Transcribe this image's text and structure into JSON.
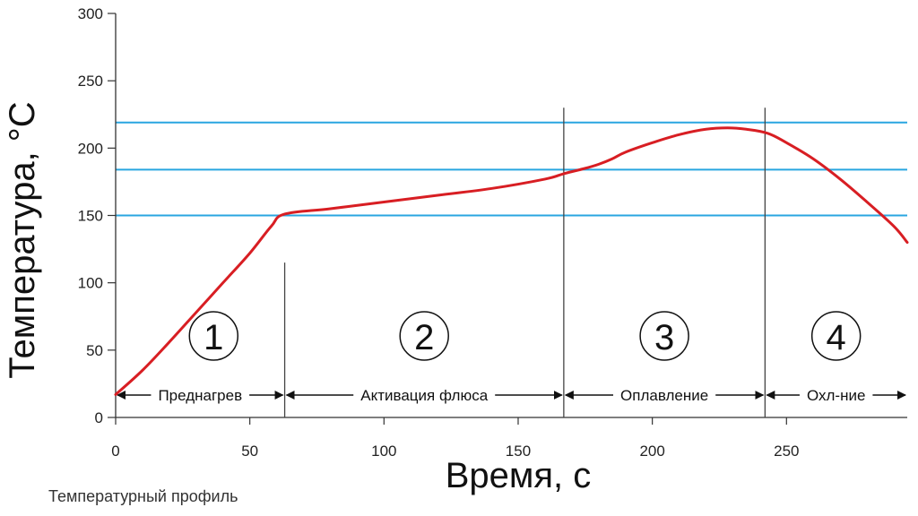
{
  "caption": "Температурный профиль",
  "colors": {
    "curve": "#d81e23",
    "reference_lines": "#29a6e0",
    "axis": "#333333",
    "phase_lines": "#444444"
  },
  "chart_data": {
    "type": "line",
    "title": "",
    "xlabel": "Время, с",
    "ylabel": "Температура, °С",
    "xlim": [
      0,
      295
    ],
    "ylim": [
      0,
      300
    ],
    "x_ticks": [
      0,
      50,
      100,
      150,
      200,
      250
    ],
    "y_ticks": [
      0,
      50,
      100,
      150,
      200,
      250,
      300
    ],
    "grid": false,
    "series": [
      {
        "x": [
          0,
          10,
          20,
          30,
          40,
          50,
          58,
          63,
          80,
          100,
          120,
          140,
          160,
          167,
          175,
          180,
          185,
          190,
          200,
          210,
          220,
          228,
          235,
          243,
          250,
          260,
          270,
          280,
          290,
          295
        ],
        "y": [
          17,
          35,
          56,
          78,
          100,
          122,
          142,
          151,
          155,
          160,
          165,
          170,
          177,
          181,
          185,
          188,
          192,
          197,
          204,
          210,
          214,
          215,
          214,
          211,
          204,
          192,
          177,
          160,
          142,
          130
        ]
      }
    ],
    "reference_lines_y": [
      150,
      184,
      219
    ],
    "phase_boundaries_x": [
      63,
      167,
      242
    ],
    "phases": [
      {
        "number": "1",
        "label": "Преднагрев",
        "start": 0,
        "end": 63
      },
      {
        "number": "2",
        "label": "Активация флюса",
        "start": 63,
        "end": 167
      },
      {
        "number": "3",
        "label": "Оплавление",
        "start": 167,
        "end": 242
      },
      {
        "number": "4",
        "label": "Охл-ние",
        "start": 242,
        "end": 295
      }
    ]
  }
}
